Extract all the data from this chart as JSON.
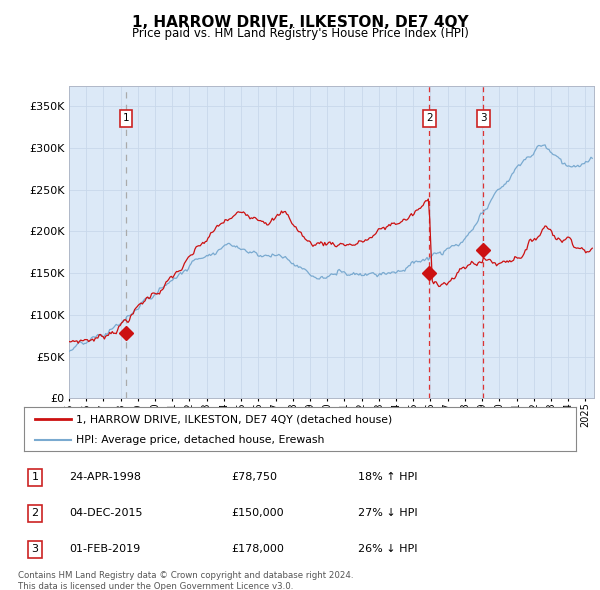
{
  "title": "1, HARROW DRIVE, ILKESTON, DE7 4QY",
  "subtitle": "Price paid vs. HM Land Registry's House Price Index (HPI)",
  "bg_color": "#dce9f7",
  "ylim": [
    0,
    375000
  ],
  "yticks": [
    0,
    50000,
    100000,
    150000,
    200000,
    250000,
    300000,
    350000
  ],
  "ytick_labels": [
    "£0",
    "£50K",
    "£100K",
    "£150K",
    "£200K",
    "£250K",
    "£300K",
    "£350K"
  ],
  "vline_dates": [
    1998.31,
    2015.92,
    2019.08
  ],
  "vline_styles": [
    "dashed_gray",
    "dashed_red",
    "dashed_red"
  ],
  "trans_dates": [
    1998.31,
    2015.92,
    2019.08
  ],
  "trans_prices": [
    78750,
    150000,
    178000
  ],
  "trans_labels": [
    "1",
    "2",
    "3"
  ],
  "transaction_table": [
    {
      "num": "1",
      "date": "24-APR-1998",
      "price": "£78,750",
      "hpi": "18% ↑ HPI"
    },
    {
      "num": "2",
      "date": "04-DEC-2015",
      "price": "£150,000",
      "hpi": "27% ↓ HPI"
    },
    {
      "num": "3",
      "date": "01-FEB-2019",
      "price": "£178,000",
      "hpi": "26% ↓ HPI"
    }
  ],
  "legend_line1": "1, HARROW DRIVE, ILKESTON, DE7 4QY (detached house)",
  "legend_line2": "HPI: Average price, detached house, Erewash",
  "footer": "Contains HM Land Registry data © Crown copyright and database right 2024.\nThis data is licensed under the Open Government Licence v3.0.",
  "red_line_color": "#cc1111",
  "blue_line_color": "#7aaad0",
  "vline_gray_color": "#aaaaaa",
  "vline_red_color": "#dd3333",
  "marker_color": "#cc1111",
  "grid_color": "#c8d8ea",
  "label_box_color": "#cc2222",
  "xlim": [
    1995.0,
    2025.5
  ]
}
